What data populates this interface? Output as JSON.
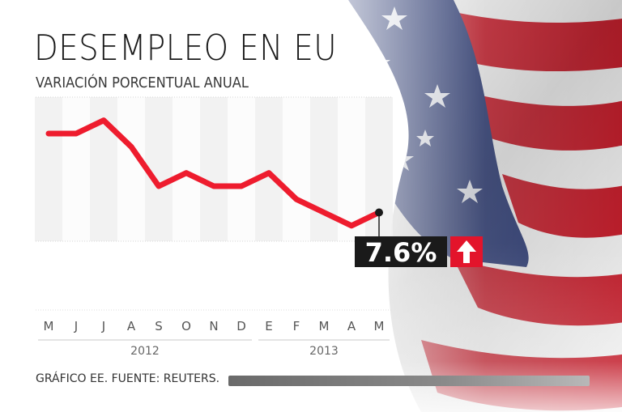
{
  "header": {
    "title": "DESEMPLEO EN EU",
    "subtitle": "VARIACIÓN PORCENTUAL ANUAL"
  },
  "footer": {
    "source": "GRÁFICO EE. FUENTE: REUTERS."
  },
  "callout": {
    "value_label": "7.6%",
    "arrow_icon": "arrow-up-icon",
    "arrow_color": "#e3142b"
  },
  "colors": {
    "line": "#ee1c2e",
    "flag_red": "#c8202e",
    "flag_blue": "#2f3e78",
    "label_bg": "#1a1a1a"
  },
  "chart_data": {
    "type": "line",
    "title": "DESEMPLEO EN EU",
    "subtitle": "VARIACIÓN PORCENTUAL ANUAL",
    "categories": [
      "M",
      "J",
      "J",
      "A",
      "S",
      "O",
      "N",
      "D",
      "E",
      "F",
      "M",
      "A",
      "M"
    ],
    "year_groups": [
      {
        "label": "2012",
        "from": 0,
        "to": 7
      },
      {
        "label": "2013",
        "from": 8,
        "to": 12
      }
    ],
    "series": [
      {
        "values": [
          8.2,
          8.2,
          8.3,
          8.1,
          7.8,
          7.9,
          7.8,
          7.8,
          7.9,
          7.7,
          7.6,
          7.5,
          7.6
        ]
      }
    ],
    "ylim": [
      7.0,
      8.6
    ],
    "last_value_label": "7.6%",
    "grid": "vertical alternating bands"
  }
}
